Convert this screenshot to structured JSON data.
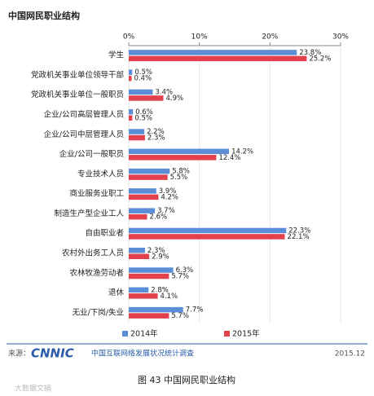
{
  "chart_data": {
    "type": "hbar",
    "title": "中国网民职业结构",
    "categories": [
      "学生",
      "党政机关事业单位领导干部",
      "党政机关事业单位一般职员",
      "企业/公司高层管理人员",
      "企业/公司中层管理人员",
      "企业/公司一般职员",
      "专业技术人员",
      "商业服务业职工",
      "制造生产型企业工人",
      "自由职业者",
      "农村外出务工人员",
      "农林牧渔劳动者",
      "退休",
      "无业/下岗/失业"
    ],
    "series": [
      {
        "name": "2014年",
        "color": "#5b8ed6",
        "values": [
          23.8,
          0.5,
          3.4,
          0.6,
          2.2,
          14.2,
          5.8,
          3.9,
          3.7,
          22.3,
          2.3,
          6.3,
          2.8,
          7.7
        ],
        "value_labels": [
          "23.8%",
          "0.5%",
          "3.4%",
          "0.6%",
          "2.2%",
          "14.2%",
          "5.8%",
          "3.9%",
          "3.7%",
          "22.3%",
          "2.3%",
          "6.3%",
          "2.8%",
          "7.7%"
        ]
      },
      {
        "name": "2015年",
        "color": "#e3404c",
        "values": [
          25.2,
          0.4,
          4.9,
          0.5,
          2.3,
          12.4,
          5.5,
          4.2,
          2.6,
          22.1,
          2.9,
          5.7,
          4.1,
          5.7
        ],
        "value_labels": [
          "25.2%",
          "0.4%",
          "4.9%",
          "0.5%",
          "2.3%",
          "12.4%",
          "5.5%",
          "4.2%",
          "2.6%",
          "22.1%",
          "2.9%",
          "5.7%",
          "4.1%",
          "5.7%"
        ]
      }
    ],
    "xlim": [
      0,
      30
    ],
    "xticks": [
      {
        "value": 0,
        "label": "0%"
      },
      {
        "value": 10,
        "label": "10%"
      },
      {
        "value": 20,
        "label": "20%"
      },
      {
        "value": 30,
        "label": "30%"
      }
    ],
    "grid": true,
    "source_label": "来源：",
    "brand": "CNNIC",
    "source": "中国互联网络发展状况统计调查",
    "date": "2015.12",
    "caption": "图 43 中国网民职业结构",
    "watermark": "大数据文摘"
  }
}
